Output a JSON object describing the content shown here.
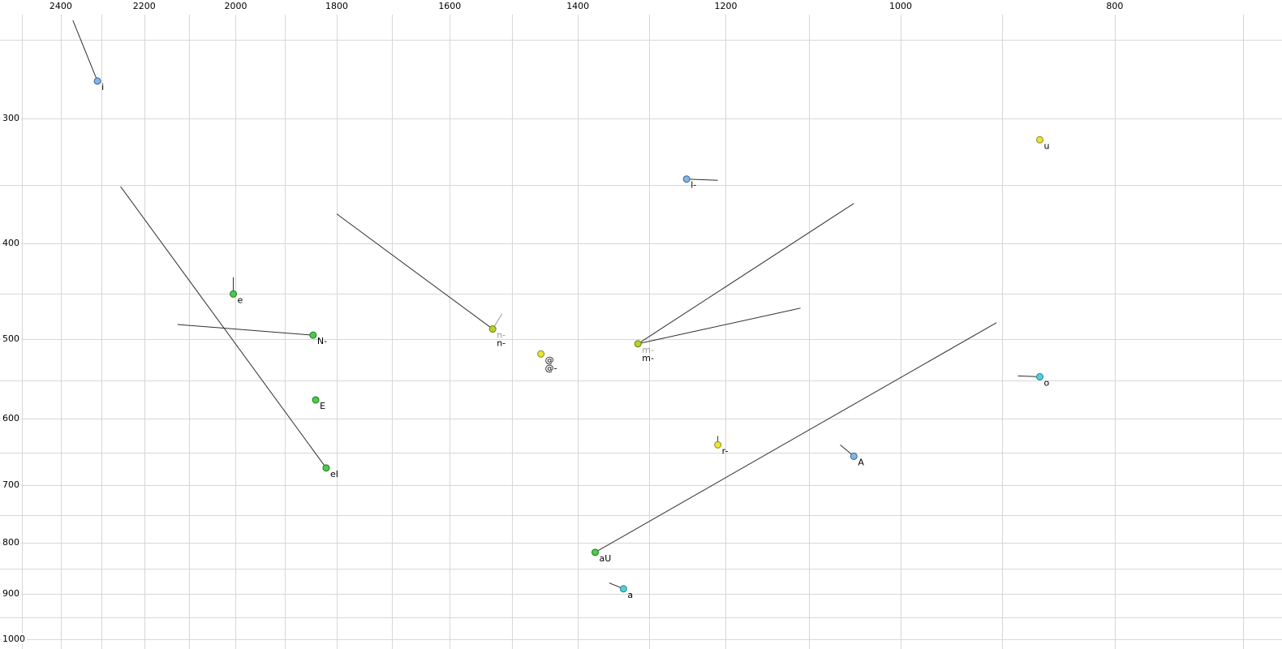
{
  "chart_data": {
    "type": "scatter",
    "title": "",
    "grid": true,
    "grid_color": "#d7d7d7",
    "default_line_color": "#2f2f2f",
    "x_axis": {
      "tick_labels": [
        2400,
        2200,
        2000,
        1800,
        1600,
        1400,
        1200,
        1000,
        800
      ],
      "scale": "log",
      "reversed": true,
      "left_edge_value": 2557,
      "right_edge_value": 672,
      "gridline_step": 100
    },
    "y_axis": {
      "tick_labels": [
        300,
        400,
        500,
        600,
        700,
        800,
        900,
        1000
      ],
      "scale": "log",
      "top_edge_value": 228,
      "bottom_edge_value": 1023,
      "gridline_step": 50
    },
    "points": [
      {
        "labels": [
          {
            "text": "i",
            "color": "#000000"
          }
        ],
        "f2": 2310,
        "f1": 275,
        "fill": "#85b6e2",
        "stroke": "#31639c",
        "tails": [
          {
            "f2": 2370,
            "f1": 239
          }
        ]
      },
      {
        "labels": [
          {
            "text": "u",
            "color": "#000000"
          }
        ],
        "f2": 865,
        "f1": 315,
        "fill": "#e8e435",
        "stroke": "#8f8a1d",
        "tails": []
      },
      {
        "labels": [
          {
            "text": "l-",
            "color": "#000000"
          }
        ],
        "f2": 1250,
        "f1": 345,
        "fill": "#85b6e2",
        "stroke": "#31639c",
        "tails": [
          {
            "f2": 1210,
            "f1": 346
          }
        ]
      },
      {
        "labels": [
          {
            "text": "e",
            "color": "#000000"
          }
        ],
        "f2": 2005,
        "f1": 450,
        "fill": "#4ec94e",
        "stroke": "#1d7a1d",
        "tails": [
          {
            "f2": 2005,
            "f1": 433
          }
        ]
      },
      {
        "labels": [
          {
            "text": "N-",
            "color": "#000000"
          }
        ],
        "f2": 1845,
        "f1": 495,
        "fill": "#4ec94e",
        "stroke": "#1d7a1d",
        "tails": [
          {
            "f2": 2125,
            "f1": 483
          }
        ]
      },
      {
        "labels": [
          {
            "text": "n-",
            "color": "#9a9a9a"
          },
          {
            "text": "n-",
            "color": "#000000"
          }
        ],
        "f2": 1530,
        "f1": 488,
        "fill": "#b4d42a",
        "stroke": "#6d7f15",
        "tails": [
          {
            "f2": 1800,
            "f1": 374
          },
          {
            "f2": 1515,
            "f1": 471,
            "color": "#9a9a9a"
          }
        ]
      },
      {
        "labels": [
          {
            "text": "@",
            "color": "#000000"
          },
          {
            "text": "@-",
            "color": "#000000"
          }
        ],
        "f2": 1455,
        "f1": 517,
        "fill": "#e8e435",
        "stroke": "#8f8a1d",
        "tails": []
      },
      {
        "labels": [
          {
            "text": "m-",
            "color": "#9a9a9a"
          },
          {
            "text": "m-",
            "color": "#000000"
          }
        ],
        "f2": 1315,
        "f1": 505,
        "fill": "#b4d42a",
        "stroke": "#6d7f15",
        "tails": [
          {
            "f2": 1050,
            "f1": 365
          },
          {
            "f2": 1110,
            "f1": 465
          }
        ]
      },
      {
        "labels": [
          {
            "text": "o",
            "color": "#000000"
          }
        ],
        "f2": 865,
        "f1": 545,
        "fill": "#52cfd8",
        "stroke": "#1d858f",
        "tails": [
          {
            "f2": 885,
            "f1": 544
          }
        ]
      },
      {
        "labels": [
          {
            "text": "E",
            "color": "#000000"
          }
        ],
        "f2": 1840,
        "f1": 575,
        "fill": "#4ec94e",
        "stroke": "#1d7a1d",
        "tails": []
      },
      {
        "labels": [
          {
            "text": "r-",
            "color": "#000000"
          }
        ],
        "f2": 1210,
        "f1": 638,
        "fill": "#e8e435",
        "stroke": "#8f8a1d",
        "tails": [
          {
            "f2": 1210,
            "f1": 625
          }
        ]
      },
      {
        "labels": [
          {
            "text": "A",
            "color": "#000000"
          }
        ],
        "f2": 1050,
        "f1": 655,
        "fill": "#85b6e2",
        "stroke": "#31639c",
        "tails": [
          {
            "f2": 1065,
            "f1": 638
          }
        ]
      },
      {
        "labels": [
          {
            "text": "eI",
            "color": "#000000"
          }
        ],
        "f2": 1820,
        "f1": 673,
        "fill": "#4ec94e",
        "stroke": "#1d7a1d",
        "tails": [
          {
            "f2": 2255,
            "f1": 351
          }
        ]
      },
      {
        "labels": [
          {
            "text": "aU",
            "color": "#000000"
          }
        ],
        "f2": 1375,
        "f1": 818,
        "fill": "#4ec94e",
        "stroke": "#1d7a1d",
        "tails": [
          {
            "f2": 905,
            "f1": 481
          }
        ]
      },
      {
        "labels": [
          {
            "text": "a",
            "color": "#000000"
          }
        ],
        "f2": 1335,
        "f1": 890,
        "fill": "#52cfd8",
        "stroke": "#1d858f",
        "tails": [
          {
            "f2": 1355,
            "f1": 878
          }
        ]
      }
    ]
  }
}
